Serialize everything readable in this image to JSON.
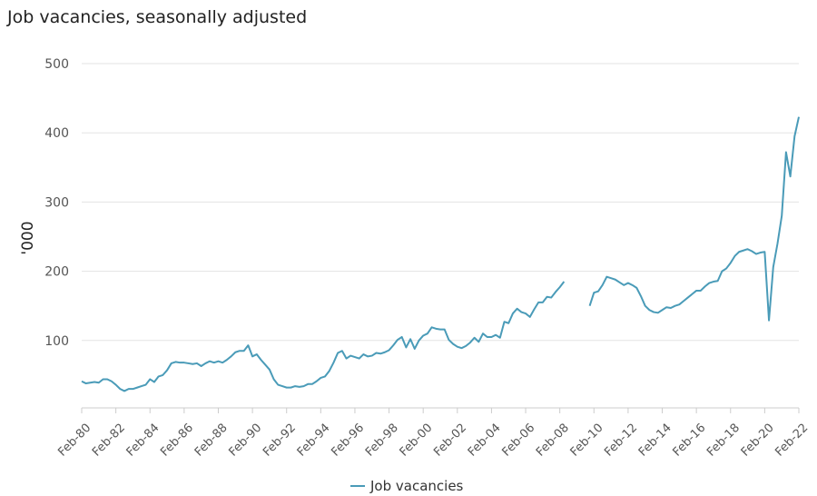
{
  "chart_data": {
    "type": "line",
    "title": "Job vacancies, seasonally adjusted",
    "y_label": "'000",
    "categories": [
      "Feb-80",
      null,
      null,
      null,
      null,
      null,
      null,
      null,
      "Feb-82",
      null,
      null,
      null,
      null,
      null,
      null,
      null,
      "Feb-84",
      null,
      null,
      null,
      null,
      null,
      null,
      null,
      "Feb-86",
      null,
      null,
      null,
      null,
      null,
      null,
      null,
      "Feb-88",
      null,
      null,
      null,
      null,
      null,
      null,
      null,
      "Feb-90",
      null,
      null,
      null,
      null,
      null,
      null,
      null,
      "Feb-92",
      null,
      null,
      null,
      null,
      null,
      null,
      null,
      "Feb-94",
      null,
      null,
      null,
      null,
      null,
      null,
      null,
      "Feb-96",
      null,
      null,
      null,
      null,
      null,
      null,
      null,
      "Feb-98",
      null,
      null,
      null,
      null,
      null,
      null,
      null,
      "Feb-00",
      null,
      null,
      null,
      null,
      null,
      null,
      null,
      "Feb-02",
      null,
      null,
      null,
      null,
      null,
      null,
      null,
      "Feb-04",
      null,
      null,
      null,
      null,
      null,
      null,
      null,
      "Feb-06",
      null,
      null,
      null,
      null,
      null,
      null,
      null,
      "Feb-08",
      null,
      null,
      null,
      null,
      null,
      null,
      null,
      "Feb-10",
      null,
      null,
      null,
      null,
      null,
      null,
      null,
      "Feb-12",
      null,
      null,
      null,
      null,
      null,
      null,
      null,
      "Feb-14",
      null,
      null,
      null,
      null,
      null,
      null,
      null,
      "Feb-16",
      null,
      null,
      null,
      null,
      null,
      null,
      null,
      "Feb-18",
      null,
      null,
      null,
      null,
      null,
      null,
      null,
      "Feb-20",
      null,
      null,
      null,
      null,
      null,
      null,
      null,
      "Feb-22"
    ],
    "series": [
      {
        "name": "Job vacancies",
        "color": "#4a9bb8",
        "values": [
          41,
          38,
          39,
          40,
          39,
          44,
          44,
          41,
          36,
          30,
          27,
          30,
          30,
          32,
          34,
          36,
          44,
          40,
          48,
          50,
          57,
          67,
          69,
          68,
          68,
          67,
          66,
          67,
          63,
          67,
          70,
          68,
          70,
          68,
          72,
          77,
          83,
          85,
          85,
          93,
          77,
          80,
          72,
          65,
          58,
          44,
          36,
          34,
          32,
          32,
          34,
          33,
          34,
          37,
          37,
          41,
          46,
          48,
          56,
          68,
          82,
          85,
          74,
          78,
          76,
          74,
          80,
          77,
          78,
          82,
          81,
          83,
          86,
          93,
          101,
          105,
          90,
          102,
          88,
          100,
          107,
          110,
          119,
          117,
          116,
          116,
          101,
          95,
          91,
          89,
          92,
          97,
          104,
          98,
          110,
          105,
          105,
          108,
          104,
          127,
          125,
          139,
          146,
          141,
          139,
          134,
          145,
          155,
          155,
          163,
          162,
          170,
          177,
          185,
          null,
          null,
          null,
          null,
          null,
          150,
          169,
          171,
          180,
          192,
          190,
          188,
          184,
          180,
          183,
          180,
          176,
          164,
          150,
          144,
          141,
          140,
          144,
          148,
          147,
          150,
          152,
          157,
          162,
          167,
          172,
          172,
          178,
          183,
          185,
          186,
          200,
          204,
          212,
          222,
          228,
          230,
          232,
          229,
          225,
          227,
          228,
          129,
          206,
          240,
          280,
          372,
          337,
          395,
          423
        ]
      }
    ],
    "ylim": [
      0,
      500
    ],
    "yticks": [
      100,
      200,
      300,
      400,
      500
    ],
    "grid": true,
    "legend": "bottom"
  }
}
